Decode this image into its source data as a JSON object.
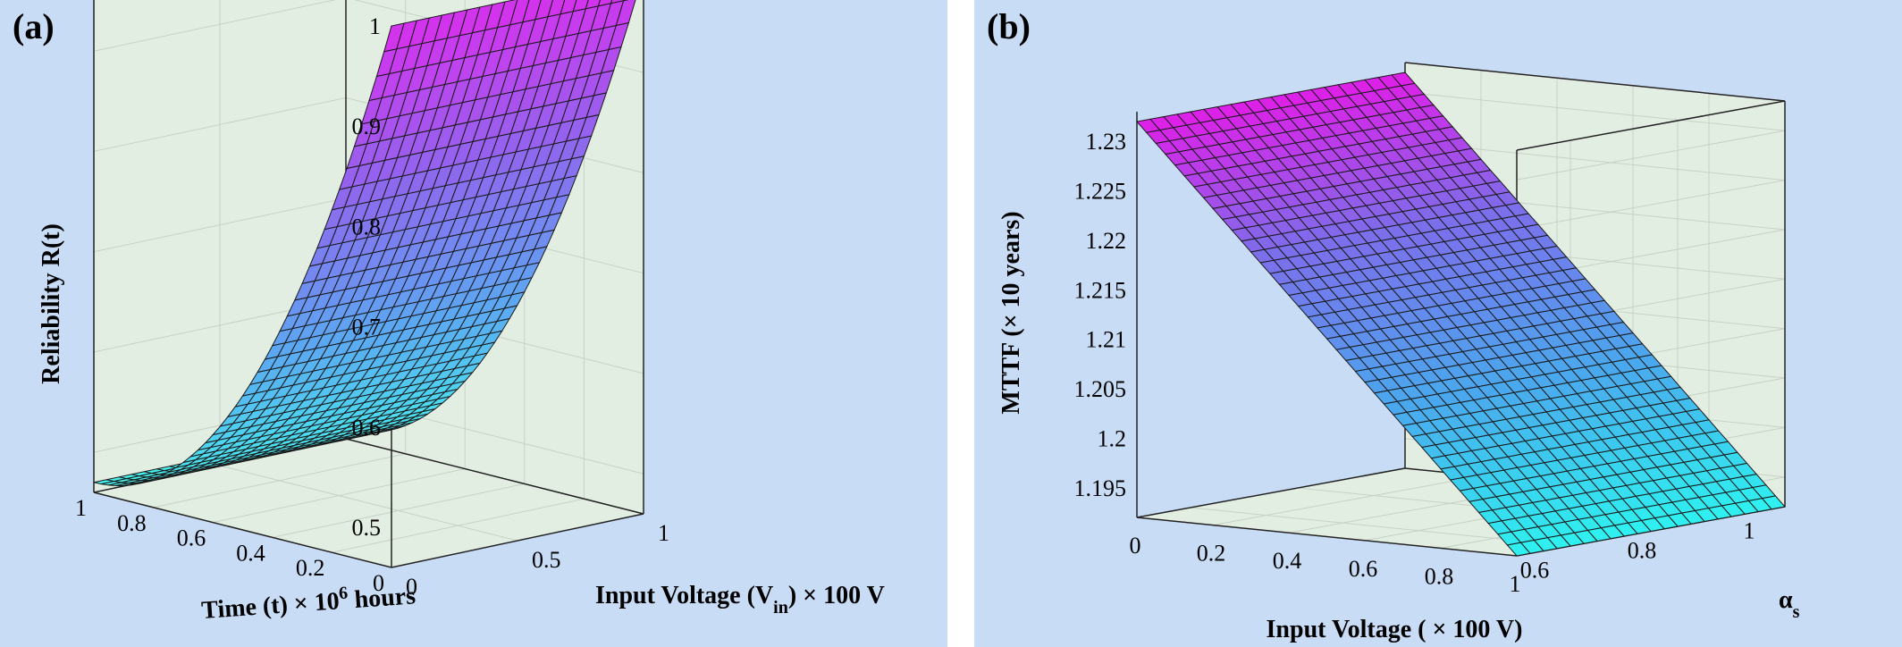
{
  "chart_data": [
    {
      "panel_label": "(a)",
      "type": "surface",
      "zlabel": "Reliability R(t)",
      "xlabel_parts": {
        "pre": "Time (t) × 10",
        "sup": "6",
        "post": " hours"
      },
      "ylabel_parts": {
        "pre": "Input Voltage (V",
        "sub": "in",
        "post": ") × 100 V"
      },
      "x_ticks": [
        "0",
        "0.2",
        "0.4",
        "0.6",
        "0.8",
        "1"
      ],
      "y_ticks": [
        "0",
        "0.5",
        "1"
      ],
      "z_ticks": [
        "0.5",
        "0.6",
        "0.7",
        "0.8",
        "0.9",
        "1"
      ],
      "xlim": [
        0,
        1
      ],
      "ylim": [
        0,
        1
      ],
      "zlim": [
        0.46,
        1
      ],
      "grid": true,
      "colormap": [
        "#45f2ee",
        "#5ba8f2",
        "#8f66ee",
        "#d830ee"
      ],
      "surface": {
        "x_steps": 40,
        "y_steps": 20,
        "R_at_t0": 1.0,
        "R_at_t1": 0.47,
        "y_effect": "negligible"
      }
    },
    {
      "panel_label": "(b)",
      "type": "surface",
      "zlabel": "MTTF (× 10 years)",
      "xlabel": "Input Voltage ( × 100 V)",
      "ylabel_parts": {
        "pre": "α",
        "sub": "s"
      },
      "x_ticks": [
        "0",
        "0.2",
        "0.4",
        "0.6",
        "0.8",
        "1"
      ],
      "y_ticks": [
        "1",
        "0.8",
        "0.6"
      ],
      "z_ticks": [
        "1.195",
        "1.2",
        "1.205",
        "1.21",
        "1.215",
        "1.22",
        "1.225",
        "1.23"
      ],
      "xlim": [
        0,
        1
      ],
      "ylim": [
        0.5,
        1
      ],
      "zlim": [
        1.192,
        1.233
      ],
      "grid": true,
      "colormap": [
        "#2ef2f0",
        "#4aa8ee",
        "#7b70ec",
        "#e818e8"
      ],
      "surface": {
        "x_steps": 40,
        "y_steps": 20,
        "MTTF_at_x0": 1.232,
        "MTTF_at_x1": 1.192,
        "y_effect": "negligible"
      }
    }
  ]
}
